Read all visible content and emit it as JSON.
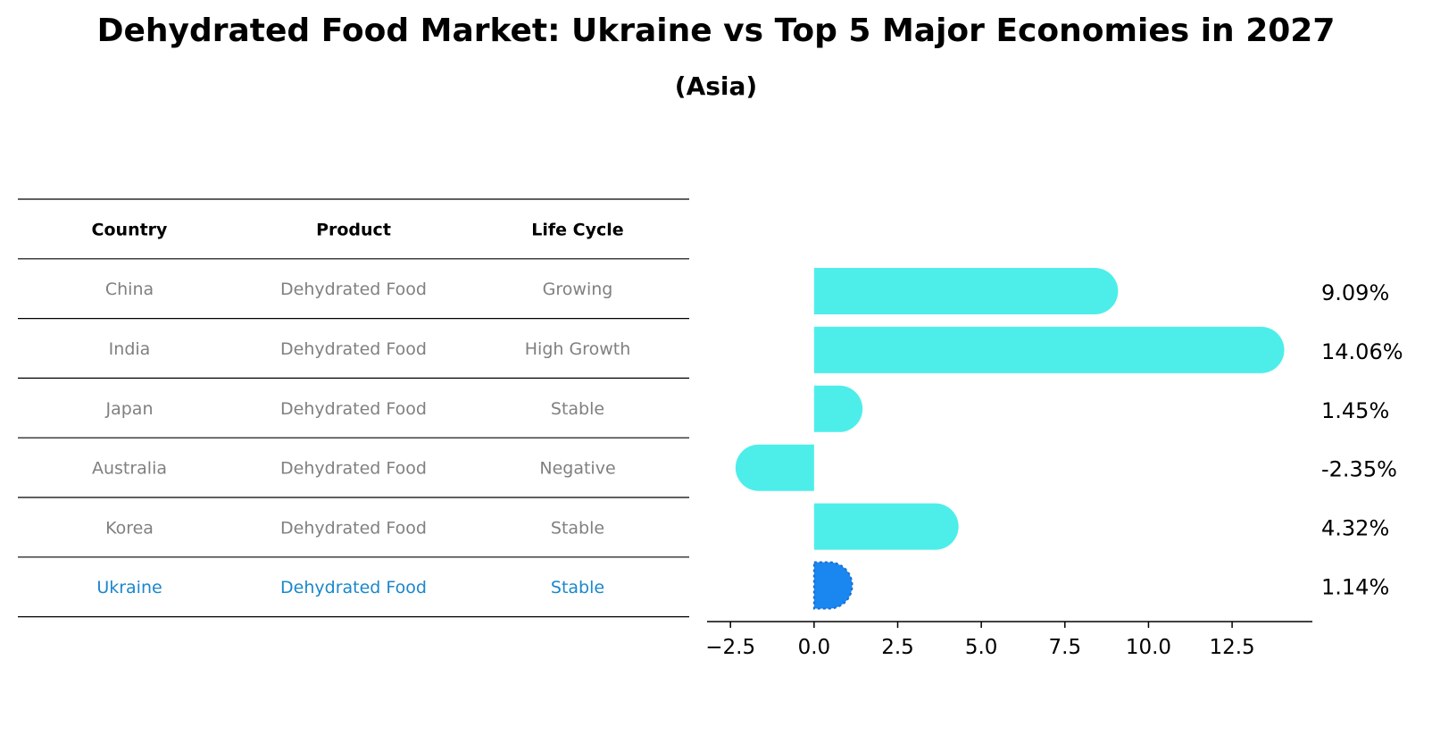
{
  "chart_data": {
    "type": "bar",
    "orientation": "horizontal",
    "title": "Dehydrated Food Market: Ukraine vs Top 5 Major Economies in 2027",
    "subtitle": "(Asia)",
    "table": {
      "columns": [
        "Country",
        "Product",
        "Life Cycle"
      ],
      "rows": [
        {
          "country": "China",
          "product": "Dehydrated Food",
          "life_cycle": "Growing",
          "highlight": false
        },
        {
          "country": "India",
          "product": "Dehydrated Food",
          "life_cycle": "High Growth",
          "highlight": false
        },
        {
          "country": "Japan",
          "product": "Dehydrated Food",
          "life_cycle": "Stable",
          "highlight": false
        },
        {
          "country": "Australia",
          "product": "Dehydrated Food",
          "life_cycle": "Negative",
          "highlight": false
        },
        {
          "country": "Korea",
          "product": "Dehydrated Food",
          "life_cycle": "Stable",
          "highlight": false
        },
        {
          "country": "Ukraine",
          "product": "Dehydrated Food",
          "life_cycle": "Stable",
          "highlight": true
        }
      ]
    },
    "categories": [
      "China",
      "India",
      "Japan",
      "Australia",
      "Korea",
      "Ukraine"
    ],
    "values": [
      9.09,
      14.06,
      1.45,
      -2.35,
      4.32,
      1.14
    ],
    "value_labels": [
      "9.09%",
      "14.06%",
      "1.45%",
      "-2.35%",
      "4.32%",
      "1.14%"
    ],
    "xlim": [
      -3.2,
      14.9
    ],
    "xticks": [
      -2.5,
      0.0,
      2.5,
      5.0,
      7.5,
      10.0,
      12.5
    ],
    "xtick_labels": [
      "−2.5",
      "0.0",
      "2.5",
      "5.0",
      "7.5",
      "10.0",
      "12.5"
    ],
    "xlabel": "",
    "ylabel": "",
    "grid": false,
    "colors": {
      "bar": "#4deeea",
      "highlight_bar": "#1a87f0",
      "table_text": "#808080",
      "highlight_text": "#1a87cc",
      "line": "#000000"
    }
  }
}
